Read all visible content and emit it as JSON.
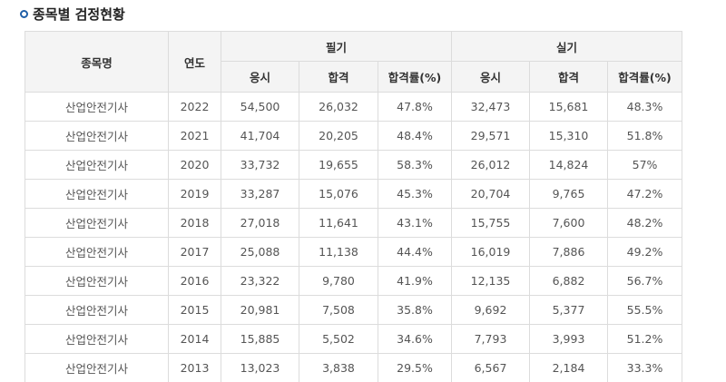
{
  "section_title": "종목별 검정현황",
  "table": {
    "headers": {
      "name": "종목명",
      "year": "연도",
      "written": "필기",
      "practical": "실기",
      "applicants": "응시",
      "passed": "합격",
      "pass_rate": "합격률(%)"
    },
    "rows": [
      {
        "name": "산업안전기사",
        "year": "2022",
        "w_apply": "54,500",
        "w_pass": "26,032",
        "w_rate": "47.8%",
        "p_apply": "32,473",
        "p_pass": "15,681",
        "p_rate": "48.3%"
      },
      {
        "name": "산업안전기사",
        "year": "2021",
        "w_apply": "41,704",
        "w_pass": "20,205",
        "w_rate": "48.4%",
        "p_apply": "29,571",
        "p_pass": "15,310",
        "p_rate": "51.8%"
      },
      {
        "name": "산업안전기사",
        "year": "2020",
        "w_apply": "33,732",
        "w_pass": "19,655",
        "w_rate": "58.3%",
        "p_apply": "26,012",
        "p_pass": "14,824",
        "p_rate": "57%"
      },
      {
        "name": "산업안전기사",
        "year": "2019",
        "w_apply": "33,287",
        "w_pass": "15,076",
        "w_rate": "45.3%",
        "p_apply": "20,704",
        "p_pass": "9,765",
        "p_rate": "47.2%"
      },
      {
        "name": "산업안전기사",
        "year": "2018",
        "w_apply": "27,018",
        "w_pass": "11,641",
        "w_rate": "43.1%",
        "p_apply": "15,755",
        "p_pass": "7,600",
        "p_rate": "48.2%"
      },
      {
        "name": "산업안전기사",
        "year": "2017",
        "w_apply": "25,088",
        "w_pass": "11,138",
        "w_rate": "44.4%",
        "p_apply": "16,019",
        "p_pass": "7,886",
        "p_rate": "49.2%"
      },
      {
        "name": "산업안전기사",
        "year": "2016",
        "w_apply": "23,322",
        "w_pass": "9,780",
        "w_rate": "41.9%",
        "p_apply": "12,135",
        "p_pass": "6,882",
        "p_rate": "56.7%"
      },
      {
        "name": "산업안전기사",
        "year": "2015",
        "w_apply": "20,981",
        "w_pass": "7,508",
        "w_rate": "35.8%",
        "p_apply": "9,692",
        "p_pass": "5,377",
        "p_rate": "55.5%"
      },
      {
        "name": "산업안전기사",
        "year": "2014",
        "w_apply": "15,885",
        "w_pass": "5,502",
        "w_rate": "34.6%",
        "p_apply": "7,793",
        "p_pass": "3,993",
        "p_rate": "51.2%"
      },
      {
        "name": "산업안전기사",
        "year": "2013",
        "w_apply": "13,023",
        "w_pass": "3,838",
        "w_rate": "29.5%",
        "p_apply": "6,567",
        "p_pass": "2,184",
        "p_rate": "33.3%"
      }
    ]
  },
  "colors": {
    "bullet": "#1f5fa8",
    "header_bg": "#f4f4f4",
    "border": "#dcdcdc"
  }
}
